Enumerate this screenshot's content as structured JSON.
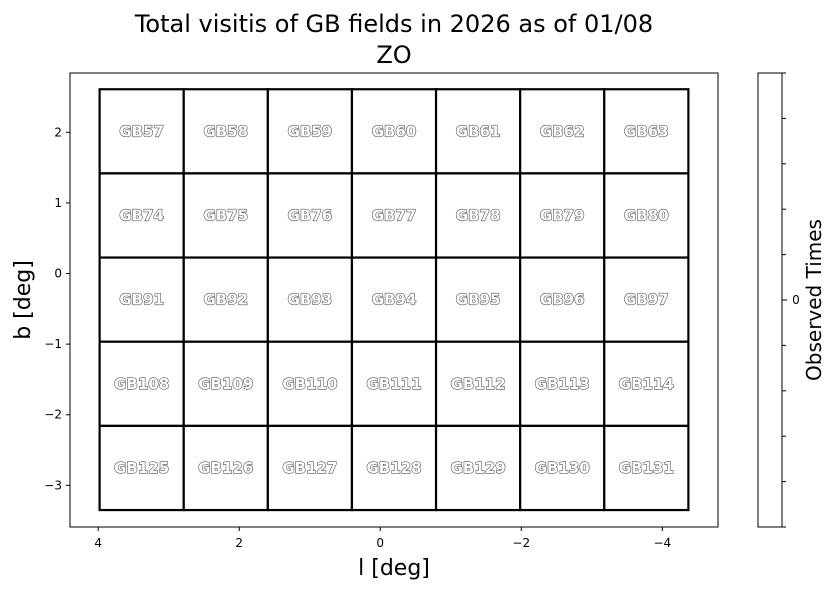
{
  "chart_data": {
    "type": "heatmap",
    "title": "Total visitis of GB fields in 2026 as of 01/08",
    "subtitle": "ZO",
    "xlabel": "l [deg]",
    "ylabel": "b [deg]",
    "colorbar_label": "Observed Times",
    "colorbar_ticks": [
      "0"
    ],
    "xlim": [
      4.4,
      -4.79
    ],
    "ylim": [
      -3.59,
      2.84
    ],
    "xticks": [
      4,
      2,
      0,
      -2,
      -4
    ],
    "xtick_labels": [
      "4",
      "2",
      "0",
      "−2",
      "−4"
    ],
    "yticks": [
      2,
      1,
      0,
      -1,
      -2,
      -3
    ],
    "ytick_labels": [
      "2",
      "1",
      "0",
      "−1",
      "−2",
      "−3"
    ],
    "grid": false,
    "cell_extent": {
      "l": [
        3.98,
        -4.37
      ],
      "b": [
        2.61,
        -3.35
      ]
    },
    "rows": [
      {
        "fields": [
          "GB57",
          "GB58",
          "GB59",
          "GB60",
          "GB61",
          "GB62",
          "GB63"
        ],
        "values": [
          0,
          0,
          0,
          0,
          0,
          0,
          0
        ]
      },
      {
        "fields": [
          "GB74",
          "GB75",
          "GB76",
          "GB77",
          "GB78",
          "GB79",
          "GB80"
        ],
        "values": [
          0,
          0,
          0,
          0,
          0,
          0,
          0
        ]
      },
      {
        "fields": [
          "GB91",
          "GB92",
          "GB93",
          "GB94",
          "GB95",
          "GB96",
          "GB97"
        ],
        "values": [
          0,
          0,
          0,
          0,
          0,
          0,
          0
        ]
      },
      {
        "fields": [
          "GB108",
          "GB109",
          "GB110",
          "GB111",
          "GB112",
          "GB113",
          "GB114"
        ],
        "values": [
          0,
          0,
          0,
          0,
          0,
          0,
          0
        ]
      },
      {
        "fields": [
          "GB125",
          "GB126",
          "GB127",
          "GB128",
          "GB129",
          "GB130",
          "GB131"
        ],
        "values": [
          0,
          0,
          0,
          0,
          0,
          0,
          0
        ]
      }
    ],
    "colors": {
      "cell_fill": "#ffffff",
      "cell_edge": "#000000",
      "label_fill": "#ffffff",
      "label_edge": "#555555"
    }
  }
}
